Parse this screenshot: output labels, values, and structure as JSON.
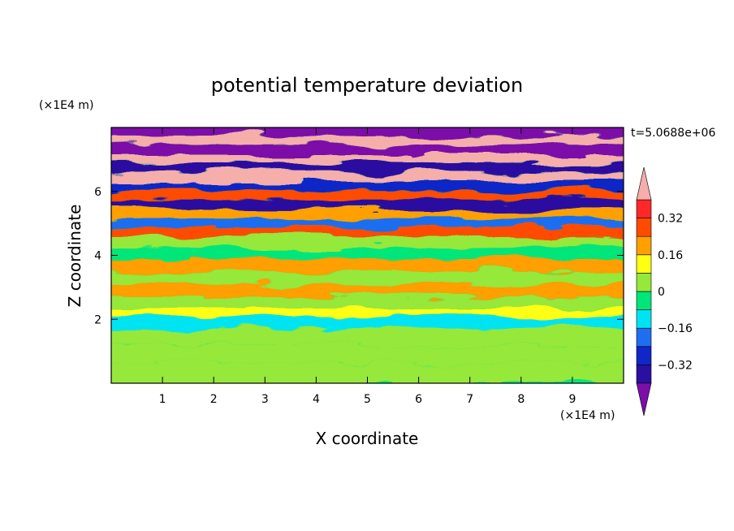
{
  "chart_data": {
    "type": "heatmap",
    "title": "potential temperature deviation",
    "xlabel": "X coordinate",
    "ylabel": "Z coordinate",
    "x_unit": "(×1E4 m)",
    "y_unit": "(×1E4 m)",
    "time_label": "t=5.0688e+06",
    "xlim": [
      0,
      10
    ],
    "ylim": [
      0,
      8
    ],
    "x_ticks": [
      1,
      2,
      3,
      4,
      5,
      6,
      7,
      8,
      9
    ],
    "y_ticks": [
      2,
      4,
      6
    ],
    "colorbar": {
      "levels": [
        -0.4,
        -0.32,
        -0.24,
        -0.16,
        -0.08,
        0,
        0.08,
        0.16,
        0.24,
        0.32,
        0.4
      ],
      "labeled_values": [
        0.32,
        0.16,
        0,
        -0.16,
        -0.32
      ],
      "labels": [
        "0.32",
        "0.16",
        "0",
        "−0.16",
        "−0.32"
      ],
      "colors": [
        "#7b0fa8",
        "#2a10a0",
        "#1026c8",
        "#1f6ef0",
        "#00e4f2",
        "#00e67a",
        "#96e83a",
        "#ffff14",
        "#ff9f00",
        "#ff4b00",
        "#ff2828",
        "#f5aeaa"
      ],
      "extend": "both"
    },
    "bands": [
      {
        "z": 0.35,
        "value": 0.06
      },
      {
        "z": 0.9,
        "value": 0.02
      },
      {
        "z": 1.5,
        "value": 0.04
      },
      {
        "z": 1.95,
        "value": -0.1
      },
      {
        "z": 2.2,
        "value": 0.12
      },
      {
        "z": 2.5,
        "value": 0.0
      },
      {
        "z": 2.9,
        "value": 0.2
      },
      {
        "z": 3.3,
        "value": 0.05
      },
      {
        "z": 3.7,
        "value": 0.18
      },
      {
        "z": 4.1,
        "value": -0.02
      },
      {
        "z": 4.4,
        "value": 0.06
      },
      {
        "z": 4.75,
        "value": 0.3
      },
      {
        "z": 5.0,
        "value": -0.2
      },
      {
        "z": 5.3,
        "value": 0.2
      },
      {
        "z": 5.6,
        "value": -0.35
      },
      {
        "z": 5.9,
        "value": 0.28
      },
      {
        "z": 6.15,
        "value": -0.3
      },
      {
        "z": 6.45,
        "value": 0.42
      },
      {
        "z": 6.75,
        "value": -0.36
      },
      {
        "z": 7.05,
        "value": 0.45
      },
      {
        "z": 7.3,
        "value": -0.45
      },
      {
        "z": 7.6,
        "value": 0.44
      },
      {
        "z": 7.85,
        "value": -0.48
      }
    ]
  }
}
